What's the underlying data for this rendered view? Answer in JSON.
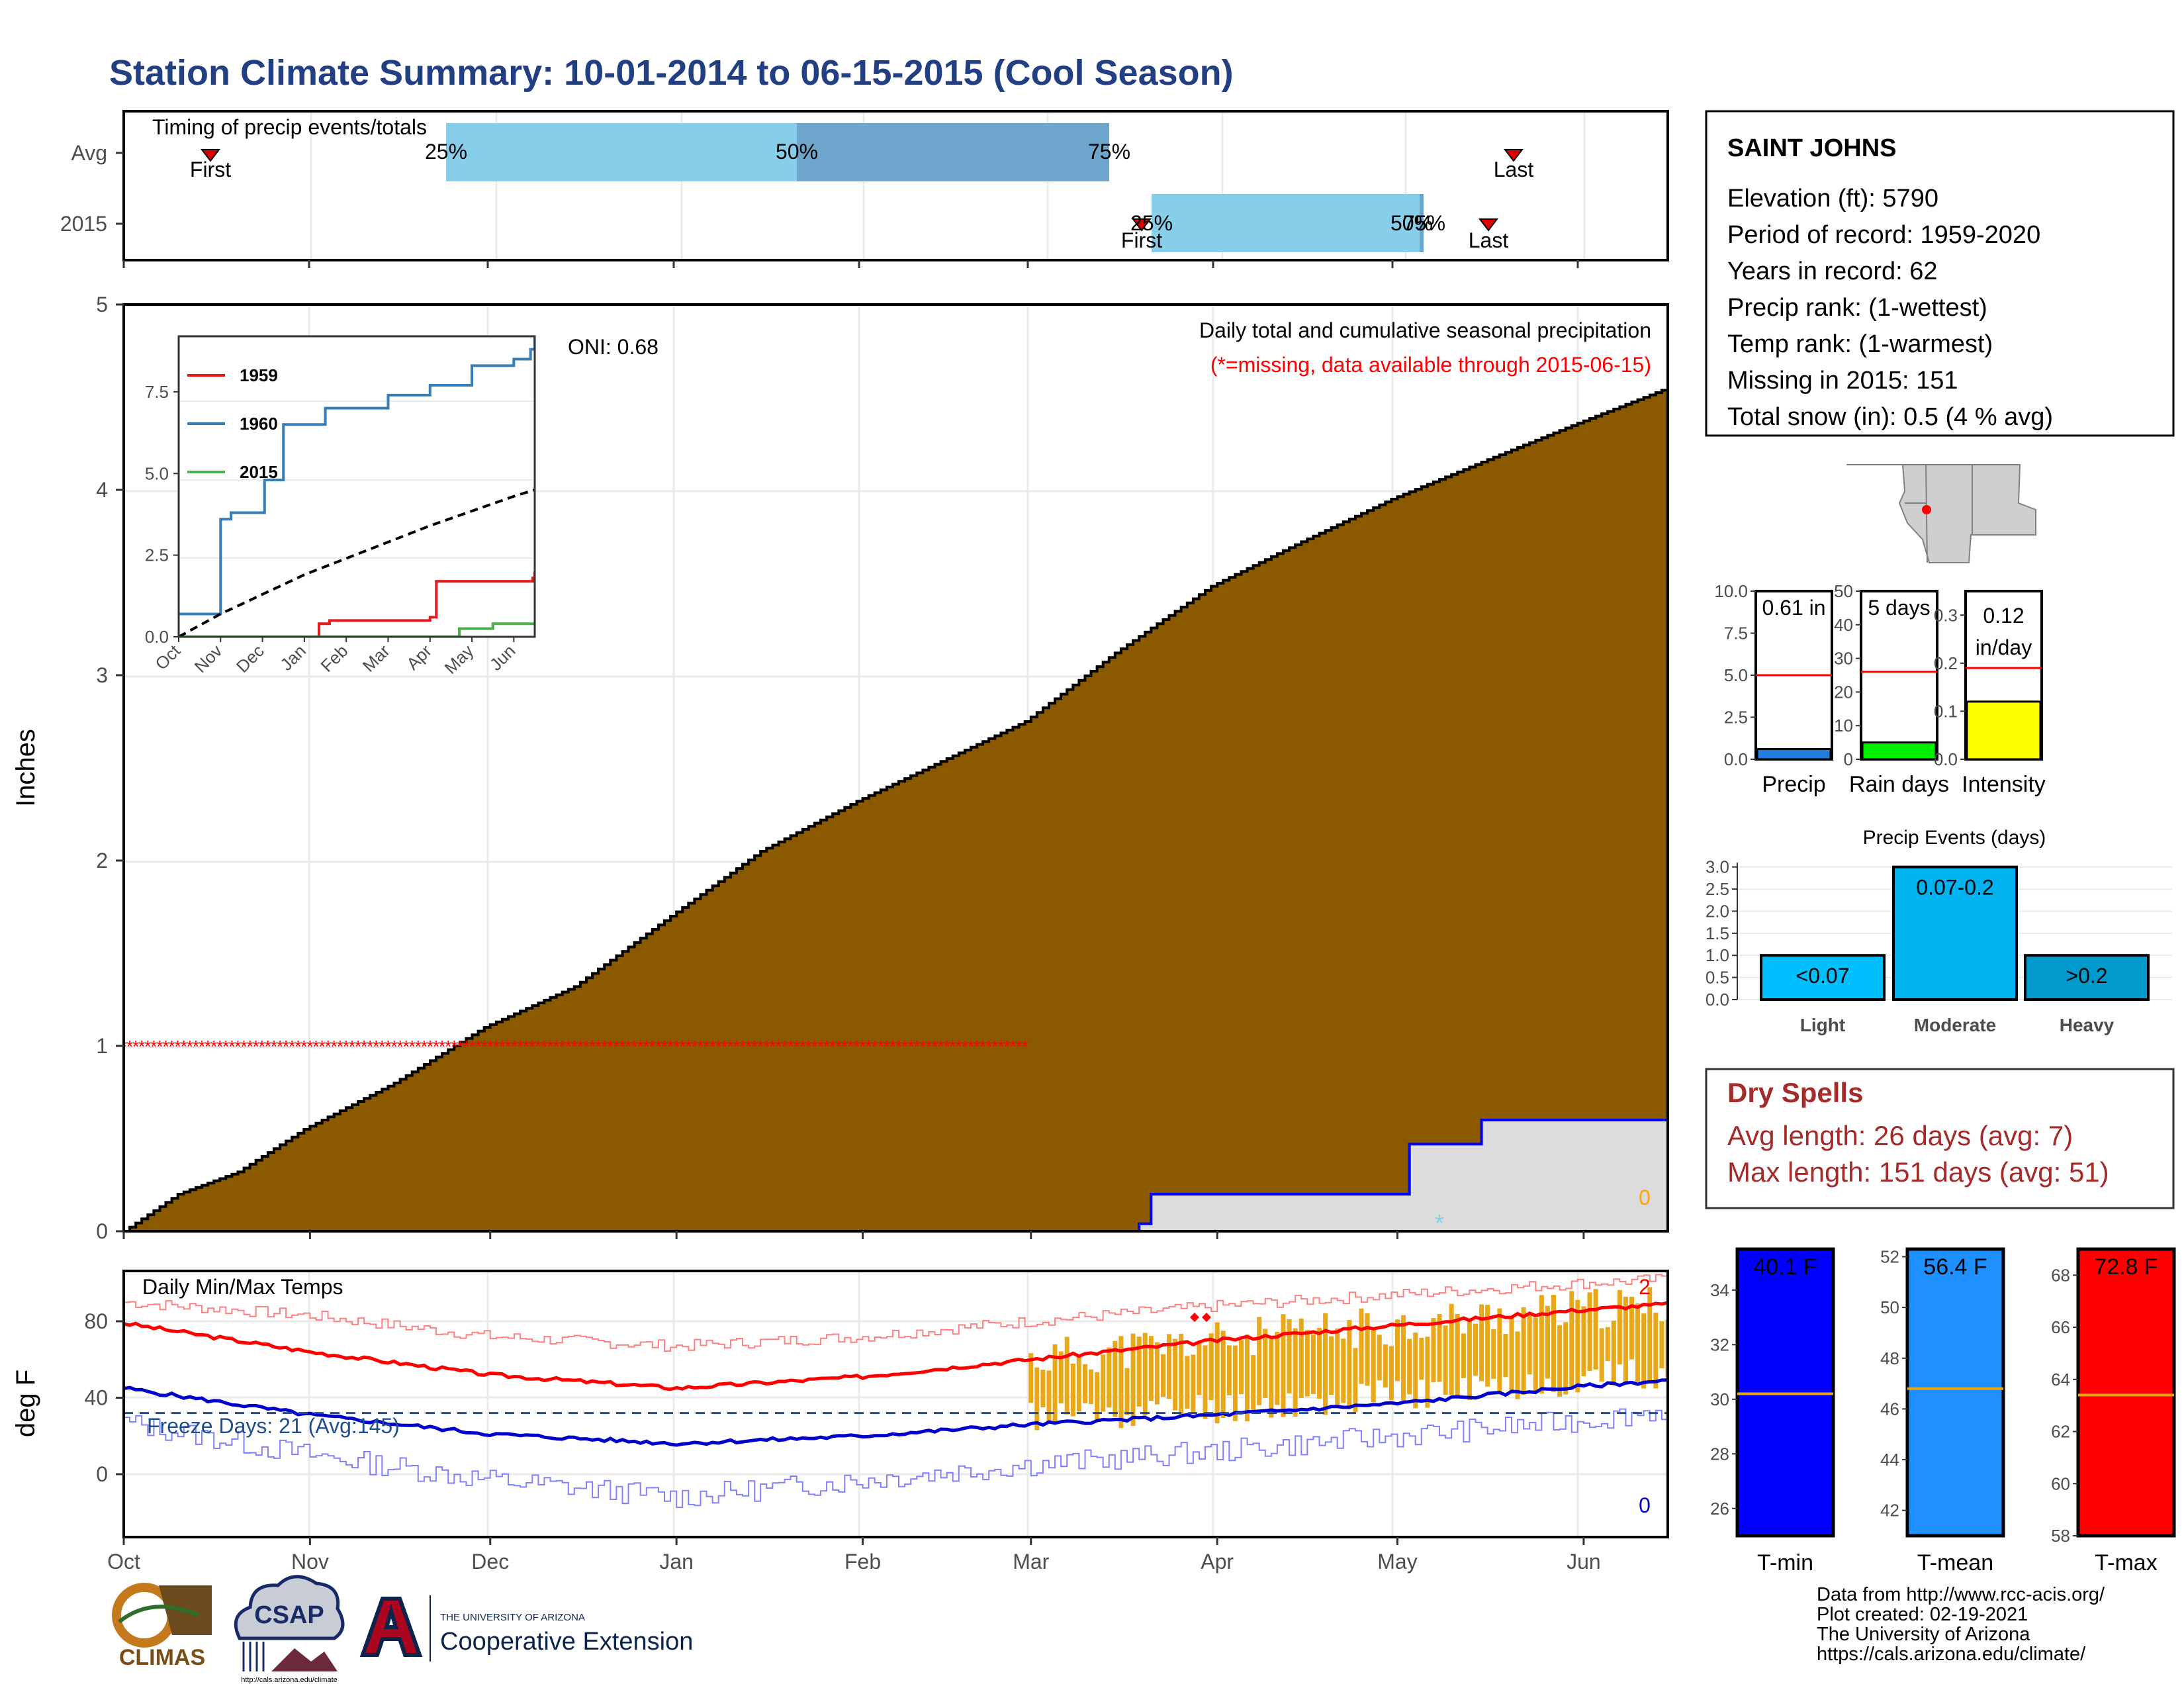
{
  "title": "Station Climate Summary: 10-01-2014 to 06-15-2015 (Cool Season)",
  "colors": {
    "title": "#233f84",
    "precip_fill": "#8b5a00",
    "avg_red": "#ff0000",
    "missing_fill": "#dcdcdc",
    "missing_line": "#0000ff",
    "range_fill": "#e8a817",
    "tmax": "#ff0000",
    "tmin": "#0000cc",
    "bar_light": "#87ceeb",
    "bar_dark": "#6ea5cc",
    "dry_spell": "#a52a2a",
    "freeze_label": "#1f4e8c"
  },
  "timing_panel": {
    "title": "Timing of precip events/totals",
    "rows": [
      "Avg",
      "2015"
    ],
    "avg": {
      "first": "First",
      "last": "Last",
      "p25": "25%",
      "p50": "50%",
      "p75": "75%"
    },
    "y2015": {
      "first": "First",
      "last": "Last",
      "p25": "25%",
      "p50": "50%",
      "p75": "75%"
    }
  },
  "precip_panel": {
    "y_label": "Inches",
    "y_ticks": [
      "0",
      "1",
      "2",
      "3",
      "4",
      "5"
    ],
    "header": "Daily total and cumulative seasonal precipitation",
    "missing_note": "(*=missing, data available through 2015-06-15)",
    "oni": "ONI: 0.68",
    "snow_count": "0",
    "missing_star": "*"
  },
  "inset": {
    "y_ticks": [
      "0.0",
      "2.5",
      "5.0",
      "7.5"
    ],
    "x_ticks": [
      "Oct",
      "Nov",
      "Dec",
      "Jan",
      "Feb",
      "Mar",
      "Apr",
      "May",
      "Jun"
    ],
    "legend": [
      {
        "name": "1959",
        "color": "#e41a1c"
      },
      {
        "name": "1960",
        "color": "#377eb8"
      },
      {
        "name": "2015",
        "color": "#4daf4a"
      }
    ]
  },
  "temp_panel": {
    "y_label": "deg F",
    "y_ticks": [
      "0",
      "40",
      "80"
    ],
    "header": "Daily Min/Max Temps",
    "freeze_text": "Freeze Days: 21 (Avg:145)",
    "count_top": "2",
    "count_bottom": "0"
  },
  "x_axis": [
    "Oct",
    "Nov",
    "Dec",
    "Jan",
    "Feb",
    "Mar",
    "Apr",
    "May",
    "Jun"
  ],
  "station_box": {
    "name": "SAINT JOHNS",
    "lines": [
      "Elevation (ft): 5790",
      "Period of record: 1959-2020",
      "Years in record: 62",
      "Precip rank:  (1-wettest)",
      "Temp rank:  (1-warmest)",
      "Missing in 2015: 151",
      "Total snow (in): 0.5 (4 % avg)"
    ]
  },
  "summary_bars": [
    {
      "label": "Precip",
      "value_text": "0.61 in",
      "value": 0.61,
      "avg": 5.0,
      "max": 10,
      "ticks": [
        "0.0",
        "2.5",
        "5.0",
        "7.5",
        "10.0"
      ],
      "color": "#1e7fe0"
    },
    {
      "label": "Rain days",
      "value_text": "5 days",
      "value": 5,
      "avg": 26,
      "max": 50,
      "ticks": [
        "0",
        "10",
        "20",
        "30",
        "40",
        "50"
      ],
      "color": "#00ee00"
    },
    {
      "label": "Intensity",
      "value_text": "0.12",
      "value_text2": "in/day",
      "value": 0.12,
      "avg": 0.19,
      "max": 0.35,
      "ticks": [
        "0.0",
        "0.1",
        "0.2",
        "0.3"
      ],
      "color": "#ffff00"
    }
  ],
  "precip_events": {
    "title": "Precip Events (days)",
    "y_ticks": [
      "0.0",
      "0.5",
      "1.0",
      "1.5",
      "2.0",
      "2.5",
      "3.0"
    ],
    "bars": [
      {
        "label": "Light",
        "range": "<0.07",
        "value": 1,
        "color": "#00bfff"
      },
      {
        "label": "Moderate",
        "range": "0.07-0.2",
        "value": 3,
        "color": "#00b2ee"
      },
      {
        "label": "Heavy",
        "range": ">0.2",
        "value": 1,
        "color": "#009acd"
      }
    ]
  },
  "dry_spells": {
    "title": "Dry Spells",
    "avg": "Avg length: 26 days (avg: 7)",
    "max": "Max length: 151 days (avg: 51)"
  },
  "temp_bars": [
    {
      "label": "T-min",
      "value_text": "40.1 F",
      "color": "#0000ff",
      "ticks": [
        "26",
        "28",
        "30",
        "32",
        "34"
      ],
      "min": 25,
      "max": 35.5,
      "avg": 30.2
    },
    {
      "label": "T-mean",
      "value_text": "56.4 F",
      "color": "#1e90ff",
      "ticks": [
        "42",
        "44",
        "46",
        "48",
        "50",
        "52"
      ],
      "min": 41,
      "max": 52.3,
      "avg": 46.8
    },
    {
      "label": "T-max",
      "value_text": "72.8 F",
      "color": "#ff0000",
      "ticks": [
        "58",
        "60",
        "62",
        "64",
        "66",
        "68"
      ],
      "min": 58,
      "max": 69,
      "avg": 63.4
    }
  ],
  "footer": {
    "lines": [
      "Data from http://www.rcc-acis.org/",
      "Plot created: 02-19-2021",
      "The University of Arizona",
      "https://cals.arizona.edu/climate/"
    ],
    "logos": {
      "climas": "CLIMAS",
      "csap": "CSAP",
      "csap_url": "http://cals.arizona.edu/climate",
      "ua_small": "THE UNIVERSITY OF ARIZONA",
      "ua_ext": "Cooperative Extension"
    }
  },
  "chart_data": [
    {
      "type": "area",
      "name": "cumulative precipitation",
      "x_range": [
        "2014-10-01",
        "2015-06-15"
      ],
      "ylim": [
        0,
        5
      ],
      "average_cumulative": [
        [
          "2014-10-01",
          0.0
        ],
        [
          "2014-10-10",
          0.2
        ],
        [
          "2014-10-20",
          0.32
        ],
        [
          "2014-10-31",
          0.55
        ],
        [
          "2014-11-15",
          0.8
        ],
        [
          "2014-11-30",
          1.1
        ],
        [
          "2014-12-15",
          1.32
        ],
        [
          "2014-12-31",
          1.7
        ],
        [
          "2015-01-15",
          2.05
        ],
        [
          "2015-01-31",
          2.32
        ],
        [
          "2015-02-15",
          2.55
        ],
        [
          "2015-02-28",
          2.75
        ],
        [
          "2015-03-15",
          3.12
        ],
        [
          "2015-03-31",
          3.48
        ],
        [
          "2015-04-15",
          3.72
        ],
        [
          "2015-04-30",
          3.95
        ],
        [
          "2015-05-15",
          4.15
        ],
        [
          "2015-05-31",
          4.36
        ],
        [
          "2015-06-15",
          4.55
        ]
      ],
      "observed_cumulative": [
        [
          "2014-10-01",
          0
        ],
        [
          "2015-03-18",
          0
        ],
        [
          "2015-03-19",
          0.04
        ],
        [
          "2015-03-21",
          0.2
        ],
        [
          "2015-05-01",
          0.2
        ],
        [
          "2015-05-03",
          0.47
        ],
        [
          "2015-05-14",
          0.47
        ],
        [
          "2015-05-15",
          0.6
        ],
        [
          "2015-06-15",
          0.61
        ]
      ],
      "missing_flag_value": 1,
      "missing_flag_range": [
        "2014-10-01",
        "2015-02-28"
      ]
    },
    {
      "type": "line",
      "name": "inset cumulative",
      "ylim": [
        0,
        9.2
      ],
      "series": [
        {
          "name": "1959",
          "points": [
            [
              0,
              0
            ],
            [
              3.25,
              0
            ],
            [
              3.35,
              0.4
            ],
            [
              3.6,
              0.5
            ],
            [
              6.0,
              0.6
            ],
            [
              6.15,
              1.7
            ],
            [
              8.45,
              1.8
            ],
            [
              8.5,
              2.0
            ]
          ]
        },
        {
          "name": "1960",
          "points": [
            [
              0,
              0.7
            ],
            [
              0.95,
              0.7
            ],
            [
              1.0,
              3.6
            ],
            [
              1.25,
              3.8
            ],
            [
              2.0,
              3.8
            ],
            [
              2.05,
              4.8
            ],
            [
              2.5,
              6.5
            ],
            [
              3.5,
              7.0
            ],
            [
              5.0,
              7.4
            ],
            [
              6.0,
              7.7
            ],
            [
              7.0,
              8.3
            ],
            [
              8.0,
              8.5
            ],
            [
              8.4,
              8.8
            ],
            [
              8.5,
              9.3
            ]
          ]
        },
        {
          "name": "2015",
          "points": [
            [
              0,
              0
            ],
            [
              6.6,
              0
            ],
            [
              6.7,
              0.25
            ],
            [
              7.5,
              0.4
            ],
            [
              8.5,
              0.45
            ]
          ]
        },
        {
          "name": "average",
          "points": [
            [
              0,
              0
            ],
            [
              1,
              0.7
            ],
            [
              2,
              1.3
            ],
            [
              3,
              1.9
            ],
            [
              4,
              2.4
            ],
            [
              5,
              2.9
            ],
            [
              6,
              3.4
            ],
            [
              7,
              3.85
            ],
            [
              8,
              4.3
            ],
            [
              8.5,
              4.5
            ]
          ]
        }
      ]
    },
    {
      "type": "line",
      "name": "daily temperatures",
      "ylim": [
        -30,
        110
      ],
      "avg_tmax": [
        [
          "2014-10-01",
          79
        ],
        [
          "2014-11-01",
          64
        ],
        [
          "2014-12-01",
          52
        ],
        [
          "2015-01-01",
          45
        ],
        [
          "2015-02-01",
          51
        ],
        [
          "2015-03-01",
          60
        ],
        [
          "2015-04-01",
          70
        ],
        [
          "2015-05-01",
          78
        ],
        [
          "2015-06-01",
          86
        ],
        [
          "2015-06-15",
          89
        ]
      ],
      "avg_tmin": [
        [
          "2014-10-01",
          45
        ],
        [
          "2014-11-01",
          31
        ],
        [
          "2014-12-01",
          21
        ],
        [
          "2015-01-01",
          16
        ],
        [
          "2015-02-01",
          20
        ],
        [
          "2015-03-01",
          26
        ],
        [
          "2015-04-01",
          31
        ],
        [
          "2015-05-01",
          37
        ],
        [
          "2015-06-01",
          46
        ],
        [
          "2015-06-15",
          49
        ]
      ],
      "record_tmax": [
        [
          "2014-10-01",
          90
        ],
        [
          "2014-11-01",
          83
        ],
        [
          "2014-12-01",
          72
        ],
        [
          "2015-01-01",
          67
        ],
        [
          "2015-02-01",
          72
        ],
        [
          "2015-03-01",
          80
        ],
        [
          "2015-04-01",
          88
        ],
        [
          "2015-05-01",
          94
        ],
        [
          "2015-06-01",
          100
        ],
        [
          "2015-06-15",
          102
        ]
      ],
      "record_tmin": [
        [
          "2014-10-01",
          27
        ],
        [
          "2014-11-01",
          10
        ],
        [
          "2014-12-01",
          -3
        ],
        [
          "2015-01-01",
          -12
        ],
        [
          "2015-02-01",
          -3
        ],
        [
          "2015-03-01",
          5
        ],
        [
          "2015-04-01",
          12
        ],
        [
          "2015-05-01",
          20
        ],
        [
          "2015-06-01",
          28
        ],
        [
          "2015-06-15",
          34
        ]
      ],
      "observed_range": [
        "2015-03-01",
        "2015-06-15"
      ],
      "freeze_threshold": 32
    }
  ]
}
